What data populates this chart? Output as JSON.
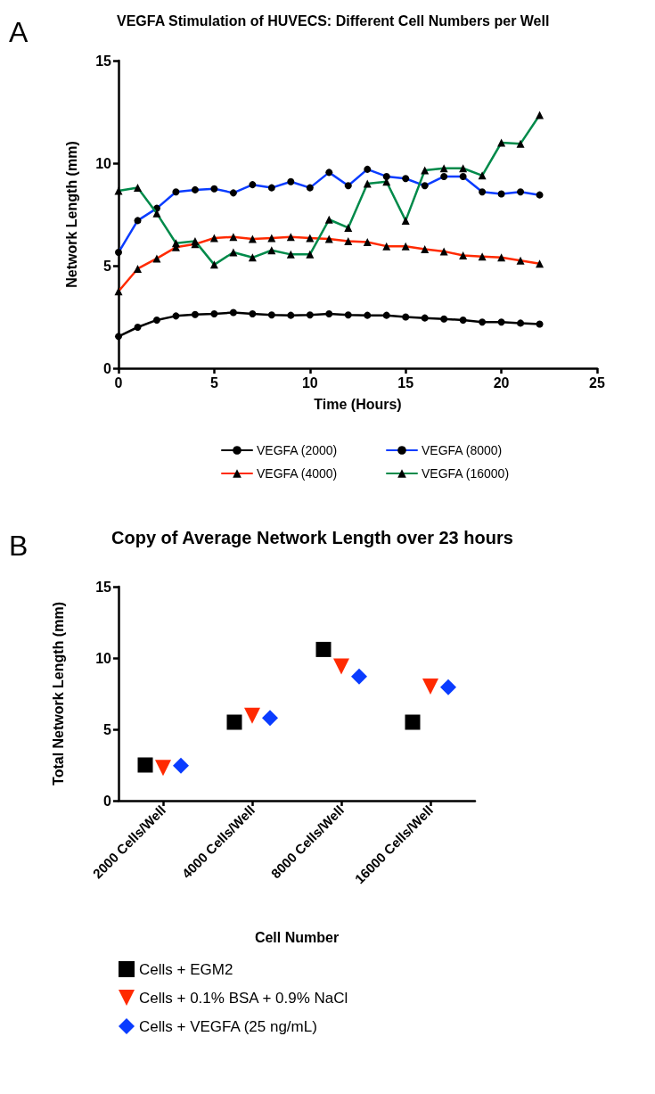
{
  "chart_data": [
    {
      "type": "line",
      "title": "VEGFA Stimulation of HUVECS: Different Cell Numbers per Well",
      "xlabel": "Time (Hours)",
      "ylabel": "Network Length (mm)",
      "annotations": [
        "A"
      ],
      "x": [
        0,
        1,
        2,
        3,
        4,
        5,
        6,
        7,
        8,
        9,
        10,
        11,
        12,
        13,
        14,
        15,
        16,
        17,
        18,
        19,
        20,
        21,
        22
      ],
      "series": [
        {
          "name": "VEGFA (2000)",
          "color": "#000000",
          "marker": "circle",
          "values": [
            1.55,
            2.0,
            2.35,
            2.55,
            2.62,
            2.65,
            2.72,
            2.65,
            2.6,
            2.58,
            2.6,
            2.65,
            2.6,
            2.58,
            2.58,
            2.5,
            2.45,
            2.4,
            2.35,
            2.25,
            2.25,
            2.2,
            2.15
          ]
        },
        {
          "name": "VEGFA (4000)",
          "color": "#ff2a00",
          "marker": "triangle",
          "values": [
            3.75,
            4.85,
            5.35,
            5.9,
            6.05,
            6.35,
            6.4,
            6.3,
            6.35,
            6.4,
            6.35,
            6.3,
            6.2,
            6.15,
            5.95,
            5.95,
            5.8,
            5.7,
            5.5,
            5.45,
            5.4,
            5.25,
            5.1
          ]
        },
        {
          "name": "VEGFA (8000)",
          "color": "#0a3cff",
          "marker": "circle",
          "values": [
            5.65,
            7.2,
            7.8,
            8.6,
            8.7,
            8.75,
            8.55,
            8.95,
            8.8,
            9.1,
            8.8,
            9.55,
            8.9,
            9.7,
            9.35,
            9.25,
            8.9,
            9.35,
            9.35,
            8.6,
            8.5,
            8.6,
            8.45
          ]
        },
        {
          "name": "VEGFA (16000)",
          "color": "#008a4a",
          "marker": "triangle",
          "values": [
            8.65,
            8.8,
            7.55,
            6.1,
            6.2,
            5.05,
            5.65,
            5.4,
            5.75,
            5.55,
            5.55,
            7.25,
            6.85,
            9.0,
            9.1,
            7.2,
            9.65,
            9.75,
            9.75,
            9.4,
            11.0,
            10.95,
            12.35
          ]
        }
      ],
      "xlim": [
        0,
        25
      ],
      "xticks": [
        0,
        5,
        10,
        15,
        20,
        25
      ],
      "ylim": [
        0,
        15
      ],
      "yticks": [
        0,
        5,
        10,
        15
      ],
      "grid": false,
      "legend": "bottom",
      "line_style": "solid"
    },
    {
      "type": "scatter",
      "title": "Copy of Average Network Length over 23 hours",
      "xlabel": "Cell Number",
      "ylabel": "Total Network Length (mm)",
      "annotations": [
        "B"
      ],
      "categories": [
        "2000 Cells/Well",
        "4000 Cells/Well",
        "8000 Cells/Well",
        "16000 Cells/Well"
      ],
      "series": [
        {
          "name": "Cells + EGM2",
          "color": "#000000",
          "marker": "square",
          "values": [
            2.5,
            5.5,
            10.6,
            5.5
          ]
        },
        {
          "name": "Cells + 0.1% BSA + 0.9% NaCl",
          "color": "#ff2a00",
          "marker": "triangle-down",
          "values": [
            2.3,
            5.95,
            9.4,
            8.0
          ]
        },
        {
          "name": "Cells + VEGFA (25 ng/mL)",
          "color": "#0a3cff",
          "marker": "diamond",
          "values": [
            2.45,
            5.8,
            8.7,
            7.95
          ]
        }
      ],
      "ylim": [
        0,
        15
      ],
      "yticks": [
        0,
        5,
        10,
        15
      ],
      "grid": false,
      "legend": "bottom"
    }
  ]
}
